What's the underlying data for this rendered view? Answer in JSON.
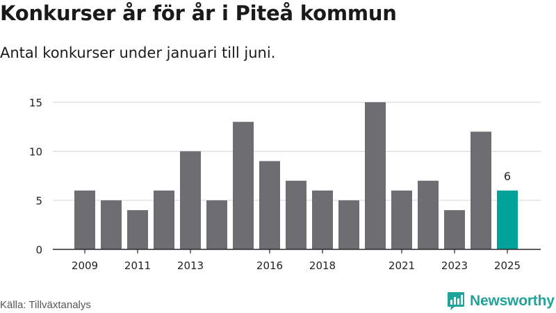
{
  "title": "Konkurser år för år i Piteå kommun",
  "subtitle": "Antal konkurser under januari till juni.",
  "source": "Källa: Tillväxtanalys",
  "brand": {
    "name": "Newsworthy",
    "color": "#1fa39a",
    "icon": "bar-chart-logo-icon"
  },
  "colors": {
    "bar": "#6e6d72",
    "highlight": "#00a29a",
    "grid": "#dcdcdc",
    "axis": "#222222"
  },
  "chart_data": {
    "type": "bar",
    "x": [
      2009,
      2010,
      2011,
      2012,
      2013,
      2014,
      2015,
      2016,
      2017,
      2018,
      2019,
      2020,
      2021,
      2022,
      2023,
      2024,
      2025
    ],
    "values": [
      6,
      5,
      4,
      6,
      10,
      5,
      13,
      9,
      7,
      6,
      5,
      15,
      6,
      7,
      4,
      12,
      6
    ],
    "xtick_labels": [
      "2009",
      "2011",
      "2013",
      "2016",
      "2018",
      "2021",
      "2023",
      "2025"
    ],
    "ylim": [
      0,
      16
    ],
    "yticks": [
      0,
      5,
      10,
      15
    ],
    "highlight": {
      "x": 2025,
      "label": "6"
    },
    "grid": true,
    "xlabel": "",
    "ylabel": ""
  }
}
